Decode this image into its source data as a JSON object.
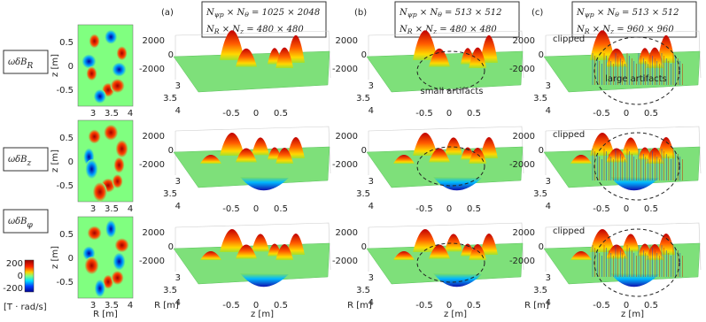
{
  "row_labels": [
    {
      "base": "ωδB",
      "sub": "R"
    },
    {
      "base": "ωδB",
      "sub": "z"
    },
    {
      "base": "ωδB",
      "sub": "φ"
    }
  ],
  "map_axes": {
    "yticks": [
      "0.5",
      "0",
      "-0.5"
    ],
    "xticks": [
      "3",
      "3.5",
      "4"
    ],
    "ylabel": "z [m]",
    "xlabel": "R [m]"
  },
  "colorbar": {
    "ticks": [
      "200",
      "0",
      "-200"
    ],
    "unit": "[T · rad/s]"
  },
  "panels": [
    {
      "label": "(a)",
      "line1": [
        "N",
        "ψp",
        " × N",
        "θ",
        " = 1025 × 2048"
      ],
      "line2": [
        "N",
        "R",
        " × N",
        "z",
        " = 480 × 480"
      ]
    },
    {
      "label": "(b)",
      "line1": [
        "N",
        "ψp",
        " × N",
        "θ",
        " = 513 × 512"
      ],
      "line2": [
        "N",
        "R",
        " × N",
        "z",
        " = 480 × 480"
      ]
    },
    {
      "label": "(c)",
      "line1": [
        "N",
        "ψp",
        " × N",
        "θ",
        " = 513 × 512"
      ],
      "line2": [
        "N",
        "R",
        " × N",
        "z",
        " = 960 × 960"
      ]
    }
  ],
  "surface_axes": {
    "vticks": [
      "2000",
      "0",
      "-2000"
    ],
    "rticks": [
      "3",
      "3.5",
      "4"
    ],
    "zticks": [
      "-0.5",
      "0",
      "0.5"
    ],
    "rlabel": "R [m]",
    "zlabel": "z [m]"
  },
  "annotations": {
    "small": "small artifacts",
    "large": "large artifacts",
    "clipped": "clipped"
  }
}
